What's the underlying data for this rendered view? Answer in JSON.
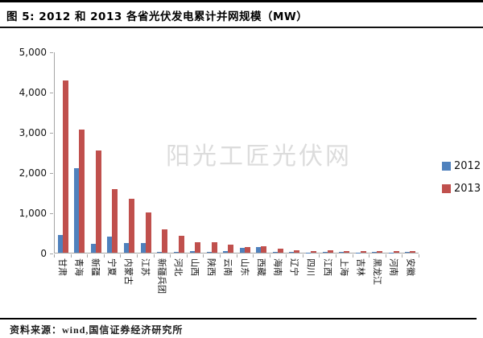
{
  "header": {
    "title": "图 5: 2012 和 2013 各省光伏发电累计并网规模（MW）"
  },
  "watermark": "阳光工匠光伏网",
  "footer": {
    "label": "资料来源：",
    "text": "wind,国信证券经济研究所"
  },
  "colors": {
    "series_2012": "#4f81bd",
    "series_2013": "#c0504d",
    "axis": "#a6a6a6",
    "watermark": "#dcdcdc"
  },
  "chart_data": {
    "type": "bar",
    "title": "2012和2013各省光伏发电累计并网规模（MW）",
    "categories": [
      "甘肃",
      "青海",
      "新疆",
      "宁夏",
      "内蒙古",
      "江苏",
      "新疆兵团",
      "河北",
      "山西",
      "陕西",
      "云南",
      "山东",
      "西藏",
      "海南",
      "辽宁",
      "四川",
      "江西",
      "上海",
      "吉林",
      "黑龙江",
      "河南",
      "安徽"
    ],
    "series": [
      {
        "name": "2012",
        "color": "#4f81bd",
        "values": [
          450,
          2100,
          220,
          400,
          250,
          250,
          30,
          30,
          40,
          25,
          35,
          120,
          150,
          25,
          15,
          10,
          25,
          30,
          10,
          15,
          10,
          30
        ]
      },
      {
        "name": "2013",
        "color": "#c0504d",
        "values": [
          4280,
          3060,
          2550,
          1580,
          1350,
          1000,
          580,
          430,
          270,
          260,
          200,
          140,
          160,
          95,
          55,
          40,
          55,
          50,
          40,
          40,
          35,
          50
        ]
      }
    ],
    "xlabel": "",
    "ylabel": "",
    "ylim": [
      0,
      5000
    ],
    "yticks": [
      0,
      1000,
      2000,
      3000,
      4000,
      5000
    ],
    "ytick_labels": [
      "0",
      "1,000",
      "2,000",
      "3,000",
      "4,000",
      "5,000"
    ],
    "grid": false,
    "legend_position": "middle-right"
  }
}
